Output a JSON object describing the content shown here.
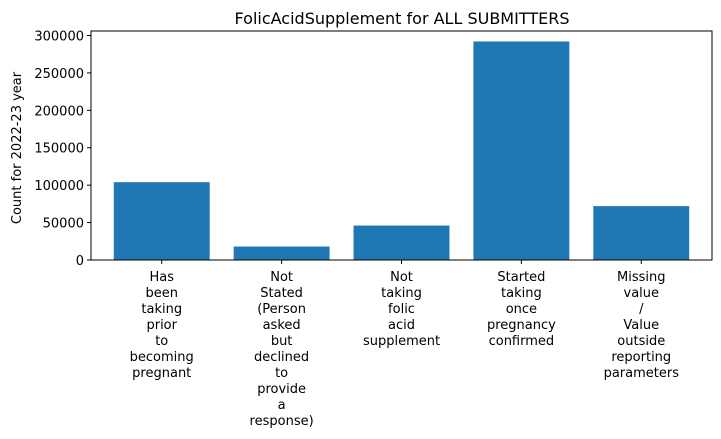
{
  "chart_data": {
    "type": "bar",
    "title": "FolicAcidSupplement for ALL SUBMITTERS",
    "xlabel": "",
    "ylabel": "Count for 2022-23 year",
    "categories": [
      [
        "Has",
        "been",
        "taking",
        "prior",
        "to",
        "becoming",
        "pregnant"
      ],
      [
        "Not",
        "Stated",
        "(Person",
        "asked",
        "but",
        "declined",
        "to",
        "provide",
        "a",
        "response)"
      ],
      [
        "Not",
        "taking",
        "folic",
        "acid",
        "supplement"
      ],
      [
        "Started",
        "taking",
        "once",
        "pregnancy",
        "confirmed"
      ],
      [
        "Missing",
        "value",
        "/",
        "Value",
        "outside",
        "reporting",
        "parameters"
      ]
    ],
    "values": [
      104000,
      18000,
      46000,
      292000,
      72000
    ],
    "ylim": [
      0,
      306000
    ],
    "yticks": [
      0,
      50000,
      100000,
      150000,
      200000,
      250000,
      300000
    ],
    "ytick_labels": [
      "0",
      "50000",
      "100000",
      "150000",
      "200000",
      "250000",
      "300000"
    ],
    "bar_color": "#1f77b4",
    "grid": false
  }
}
